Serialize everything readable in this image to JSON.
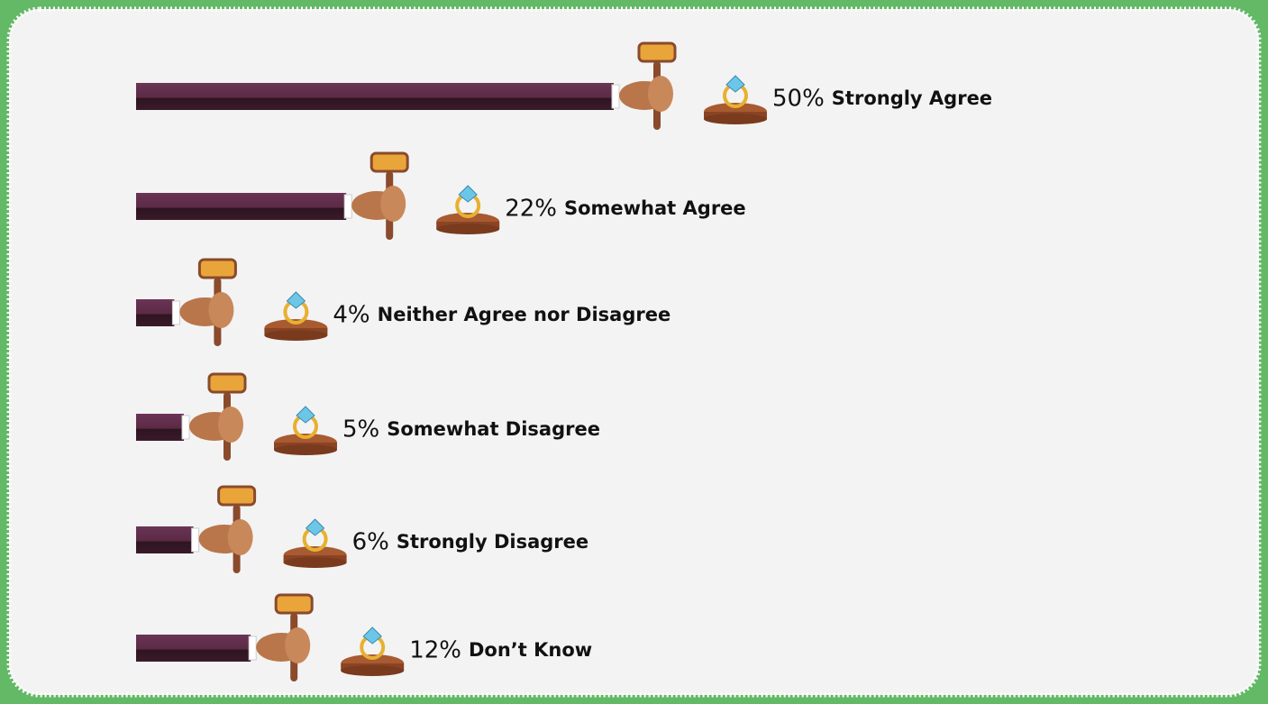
{
  "chart_data": {
    "type": "bar",
    "orientation": "horizontal",
    "categories": [
      "Strongly Agree",
      "Somewhat Agree",
      "Neither Agree nor Disagree",
      "Somewhat Disagree",
      "Strongly Disagree",
      "Don’t Know"
    ],
    "values": [
      50,
      22,
      4,
      5,
      6,
      12
    ],
    "value_labels": [
      "50%",
      "22%",
      "4%",
      "5%",
      "6%",
      "12%"
    ],
    "color": "#5a2a44"
  }
}
